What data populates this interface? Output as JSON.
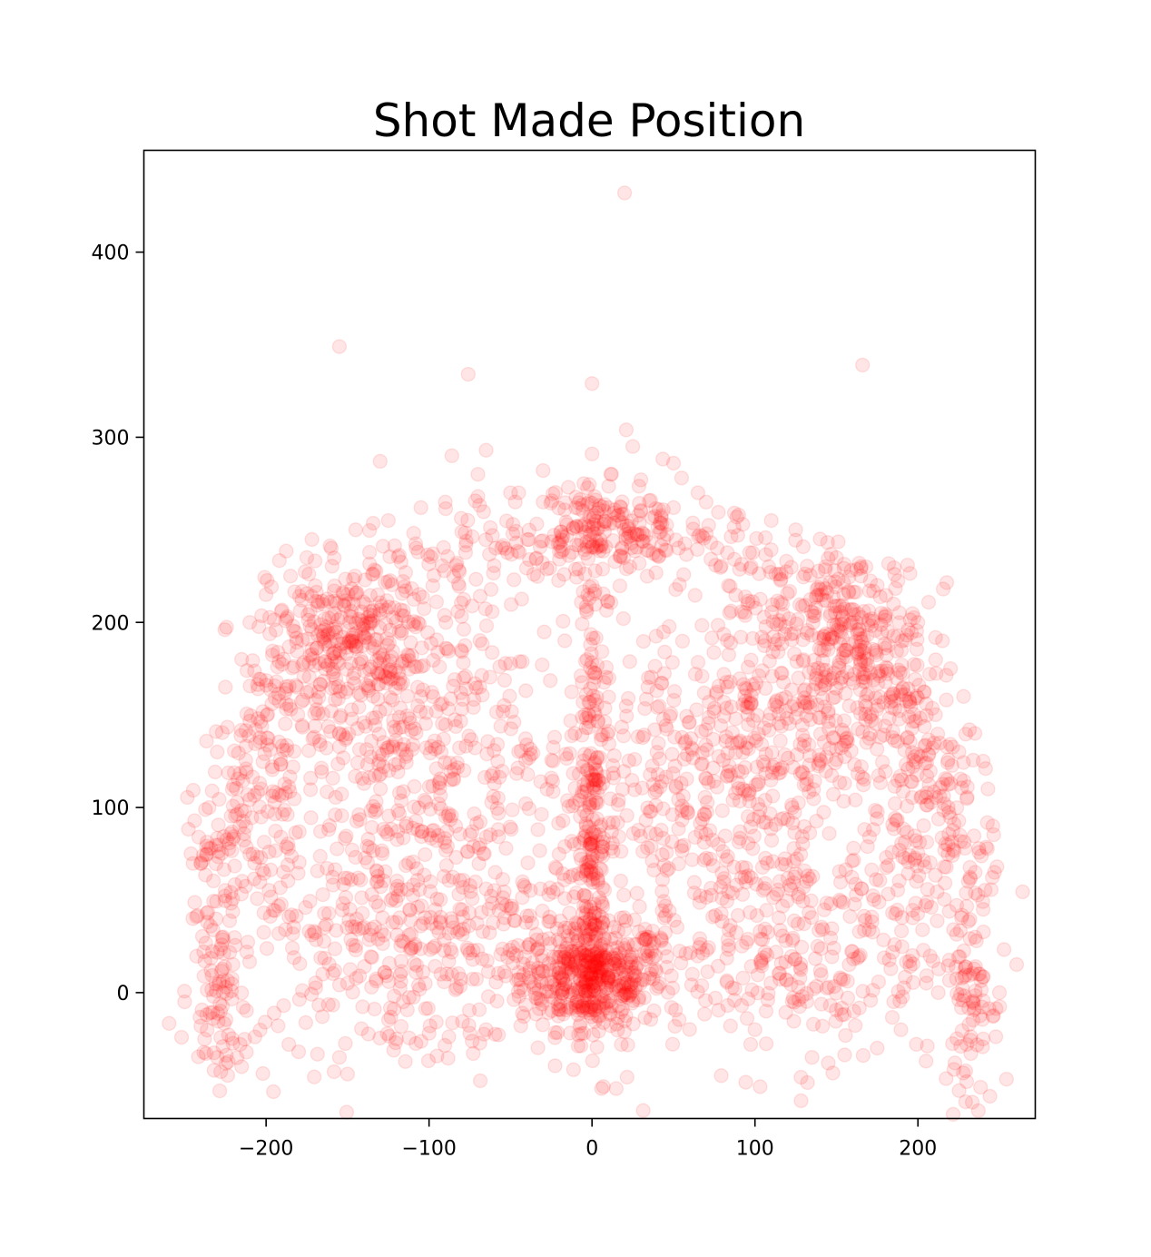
{
  "chart_data": {
    "type": "scatter",
    "title": "Shot Made Position",
    "xlabel": "",
    "ylabel": "",
    "xlim": [
      -275,
      272
    ],
    "ylim": [
      -68,
      455
    ],
    "xticks": [
      -200,
      -100,
      0,
      100,
      200
    ],
    "xtick_labels": [
      "−200",
      "−100",
      "0",
      "100",
      "200"
    ],
    "yticks": [
      0,
      100,
      200,
      300,
      400
    ],
    "ytick_labels": [
      "0",
      "100",
      "200",
      "300",
      "400"
    ],
    "grid": false,
    "legend": "none",
    "marker_color": "#ff0000",
    "marker_alpha": 0.1,
    "series": [
      {
        "values_note": "",
        "points": [
          [
            20,
            432
          ],
          [
            -155,
            349
          ],
          [
            166,
            339
          ],
          [
            -76,
            334
          ],
          [
            0,
            329
          ],
          [
            21,
            304
          ],
          [
            25,
            295
          ],
          [
            -130,
            287
          ],
          [
            -86,
            290
          ],
          [
            -65,
            293
          ],
          [
            0,
            291
          ],
          [
            50,
            286
          ],
          [
            55,
            278
          ],
          [
            -70,
            280
          ],
          [
            -30,
            282
          ],
          [
            12,
            280
          ],
          [
            30,
            277
          ],
          [
            -5,
            275
          ],
          [
            65,
            270
          ],
          [
            -45,
            270
          ],
          [
            -240,
            -18
          ],
          [
            -230,
            -35
          ],
          [
            -215,
            -40
          ],
          [
            -180,
            -32
          ],
          [
            -155,
            -35
          ],
          [
            -150,
            -44
          ],
          [
            -120,
            -25
          ],
          [
            -100,
            -22
          ],
          [
            -75,
            -22
          ],
          [
            -65,
            -20
          ],
          [
            -5,
            -22
          ],
          [
            18,
            -28
          ],
          [
            85,
            -18
          ],
          [
            100,
            -20
          ],
          [
            145,
            -38
          ],
          [
            135,
            -35
          ],
          [
            175,
            -30
          ],
          [
            205,
            -37
          ],
          [
            240,
            -25
          ],
          [
            230,
            -28
          ],
          [
            250,
            0
          ],
          [
            -250,
            -5
          ],
          [
            -245,
            40
          ],
          [
            -240,
            70
          ],
          [
            -235,
            100
          ],
          [
            -230,
            130
          ],
          [
            -225,
            165
          ],
          [
            -215,
            180
          ],
          [
            -210,
            200
          ],
          [
            -200,
            215
          ],
          [
            -185,
            225
          ],
          [
            -175,
            235
          ],
          [
            -160,
            240
          ],
          [
            -145,
            250
          ],
          [
            -125,
            255
          ],
          [
            -105,
            262
          ],
          [
            -90,
            265
          ],
          [
            -70,
            268
          ],
          [
            -50,
            270
          ],
          [
            -30,
            265
          ],
          [
            -10,
            262
          ],
          [
            10,
            262
          ],
          [
            30,
            260
          ],
          [
            50,
            262
          ],
          [
            70,
            265
          ],
          [
            90,
            258
          ],
          [
            110,
            255
          ],
          [
            125,
            250
          ],
          [
            140,
            245
          ],
          [
            150,
            235
          ],
          [
            165,
            225
          ],
          [
            175,
            220
          ],
          [
            185,
            210
          ],
          [
            200,
            200
          ],
          [
            215,
            190
          ],
          [
            220,
            175
          ],
          [
            228,
            160
          ],
          [
            235,
            140
          ],
          [
            240,
            125
          ],
          [
            243,
            110
          ],
          [
            246,
            90
          ],
          [
            247,
            65
          ],
          [
            240,
            45
          ],
          [
            235,
            30
          ],
          [
            238,
            10
          ]
        ]
      }
    ],
    "density_regions": [
      {
        "cx": 0,
        "cy": 8,
        "sx": 22,
        "sy": 14,
        "n": 420
      },
      {
        "cx": 0,
        "cy": 60,
        "sx": 5,
        "sy": 40,
        "n": 160
      },
      {
        "cx": 0,
        "cy": 160,
        "sx": 6,
        "sy": 60,
        "n": 90
      },
      {
        "cx": 0,
        "cy": 252,
        "sx": 18,
        "sy": 12,
        "n": 110
      },
      {
        "cx": -155,
        "cy": 195,
        "sx": 22,
        "sy": 20,
        "n": 170
      },
      {
        "cx": 160,
        "cy": 195,
        "sx": 22,
        "sy": 22,
        "n": 170
      },
      {
        "cx": -120,
        "cy": 145,
        "sx": 35,
        "sy": 40,
        "n": 300
      },
      {
        "cx": 115,
        "cy": 150,
        "sx": 40,
        "sy": 38,
        "n": 340
      },
      {
        "cx": -120,
        "cy": 30,
        "sx": 50,
        "sy": 35,
        "n": 320
      },
      {
        "cx": 120,
        "cy": 30,
        "sx": 50,
        "sy": 35,
        "n": 320
      },
      {
        "cx": -60,
        "cy": 90,
        "sx": 40,
        "sy": 60,
        "n": 260
      },
      {
        "cx": 60,
        "cy": 90,
        "sx": 40,
        "sy": 60,
        "n": 260
      },
      {
        "cx": -230,
        "cy": 10,
        "sx": 8,
        "sy": 30,
        "n": 90
      },
      {
        "cx": 232,
        "cy": 5,
        "sx": 7,
        "sy": 30,
        "n": 90
      },
      {
        "cx": -200,
        "cy": 100,
        "sx": 15,
        "sy": 50,
        "n": 110
      },
      {
        "cx": 200,
        "cy": 100,
        "sx": 15,
        "sy": 50,
        "n": 110
      }
    ],
    "arc": {
      "r": 240,
      "n": 520,
      "spread": 12
    }
  }
}
